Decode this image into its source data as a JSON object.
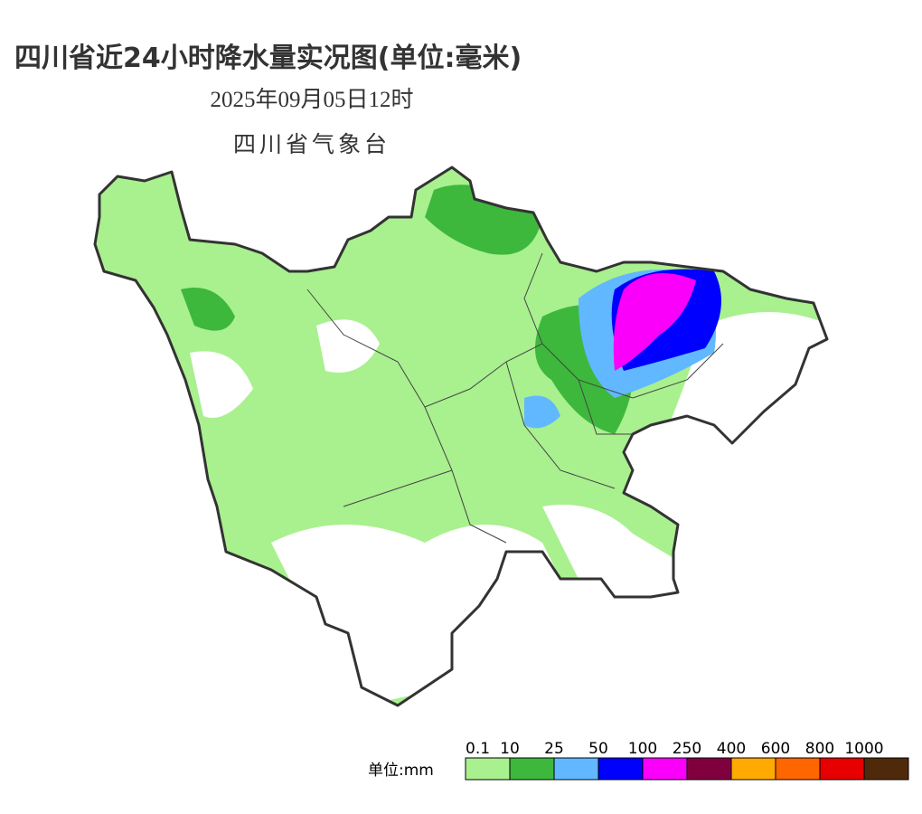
{
  "header": {
    "title": "四川省近24小时降水量实况图(单位:毫米)",
    "date": "2025年09月05日12时",
    "agency": "四川省气象台"
  },
  "legend": {
    "unit_label": "单位:mm",
    "items": [
      {
        "label": "0.1",
        "color": "#a9f08f"
      },
      {
        "label": "10",
        "color": "#3db83d"
      },
      {
        "label": "25",
        "color": "#62b8fe"
      },
      {
        "label": "50",
        "color": "#0000fe"
      },
      {
        "label": "100",
        "color": "#fa00fa"
      },
      {
        "label": "250",
        "color": "#80003f"
      },
      {
        "label": "400",
        "color": "#ffaa00"
      },
      {
        "label": "600",
        "color": "#ff6600"
      },
      {
        "label": "800",
        "color": "#e60000"
      },
      {
        "label": "1000",
        "color": "#4f2a0a"
      }
    ]
  }
}
